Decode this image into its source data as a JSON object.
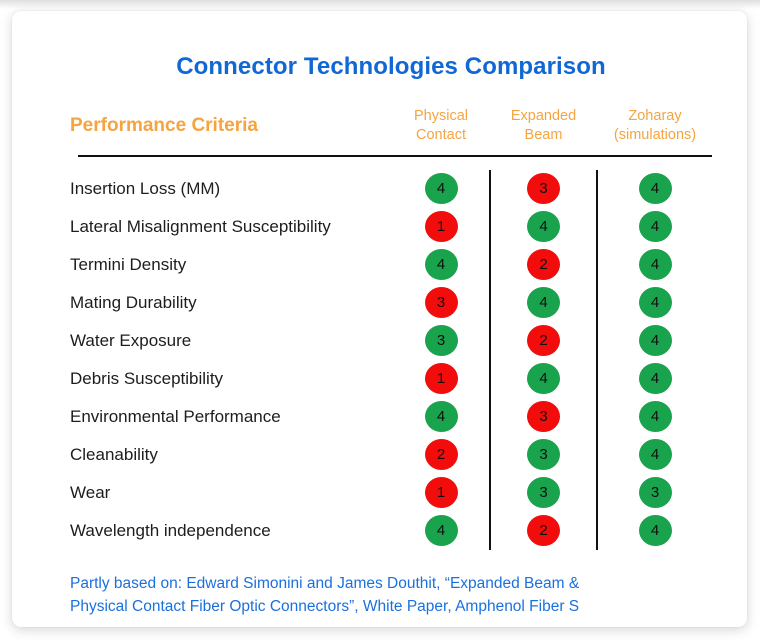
{
  "title": "Connector Technologies Comparison",
  "header": {
    "criteria_label": "Performance Criteria",
    "columns": [
      {
        "line1": "Physical",
        "line2": "Contact"
      },
      {
        "line1": "Expanded",
        "line2": "Beam"
      },
      {
        "line1": "Zoharay",
        "line2": "(simulations)"
      }
    ]
  },
  "chart_data": {
    "type": "table",
    "title": "Connector Technologies Comparison",
    "row_header": "Performance Criteria",
    "columns": [
      "Physical Contact",
      "Expanded Beam",
      "Zoharay (simulations)"
    ],
    "rows": [
      "Insertion Loss (MM)",
      "Lateral Misalignment Susceptibility",
      "Termini Density",
      "Mating Durability",
      "Water Exposure",
      "Debris Susceptibility",
      "Environmental Performance",
      "Cleanability",
      "Wear",
      "Wavelength independence"
    ],
    "values": [
      [
        4,
        3,
        4
      ],
      [
        1,
        4,
        4
      ],
      [
        4,
        2,
        4
      ],
      [
        3,
        4,
        4
      ],
      [
        3,
        2,
        4
      ],
      [
        1,
        4,
        4
      ],
      [
        4,
        3,
        4
      ],
      [
        2,
        3,
        4
      ],
      [
        1,
        3,
        3
      ],
      [
        4,
        2,
        4
      ]
    ],
    "cell_colors": [
      [
        "green",
        "red",
        "green"
      ],
      [
        "red",
        "green",
        "green"
      ],
      [
        "green",
        "red",
        "green"
      ],
      [
        "red",
        "green",
        "green"
      ],
      [
        "green",
        "red",
        "green"
      ],
      [
        "red",
        "green",
        "green"
      ],
      [
        "green",
        "red",
        "green"
      ],
      [
        "red",
        "green",
        "green"
      ],
      [
        "red",
        "green",
        "green"
      ],
      [
        "green",
        "red",
        "green"
      ]
    ]
  },
  "footer": {
    "line1": "Partly based on: Edward Simonini and James Douthit, “Expanded Beam &",
    "line2": "Physical Contact Fiber Optic Connectors”, White Paper, Amphenol Fiber S"
  },
  "colors": {
    "green": "#18A34C",
    "red": "#F20C0C",
    "title_blue": "#1168D4",
    "footer_blue": "#1A70DE",
    "orange": "#F5A440"
  }
}
